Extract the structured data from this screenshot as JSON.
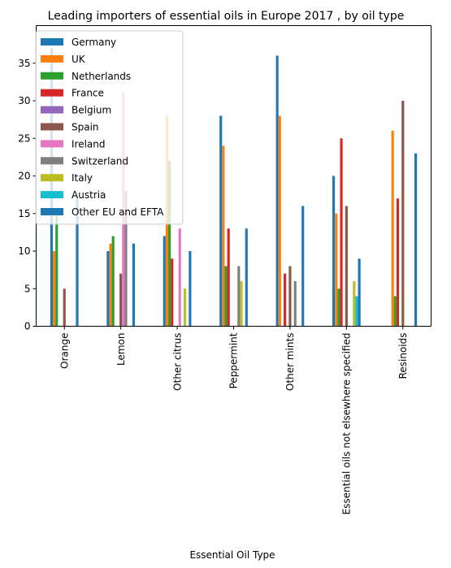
{
  "chart_data": {
    "type": "bar",
    "title": "Leading importers of essential oils in Europe 2017 , by oil type",
    "xlabel": "Essential Oil Type",
    "ylabel": "",
    "ylim": [
      0,
      40
    ],
    "yticks": [
      0,
      5,
      10,
      15,
      20,
      25,
      30,
      35
    ],
    "grid": false,
    "legend_position": "top-left",
    "categories": [
      "Orange",
      "Lemon",
      "Other citrus",
      "Peppermint",
      "Other mints",
      "Essential oils not elsewhere specified",
      "Resinoids"
    ],
    "series": [
      {
        "name": "Germany",
        "color": "#1f77b4",
        "values": [
          37,
          10,
          12,
          28,
          36,
          20,
          0
        ]
      },
      {
        "name": "UK",
        "color": "#ff7f0e",
        "values": [
          10,
          11,
          28,
          24,
          28,
          15,
          26
        ]
      },
      {
        "name": "Netherlands",
        "color": "#2ca02c",
        "values": [
          15,
          12,
          22,
          8,
          0,
          5,
          4
        ]
      },
      {
        "name": "France",
        "color": "#d62728",
        "values": [
          0,
          0,
          9,
          13,
          7,
          25,
          17
        ]
      },
      {
        "name": "Belgium",
        "color": "#9467bd",
        "values": [
          0,
          0,
          0,
          0,
          0,
          0,
          0
        ]
      },
      {
        "name": "Spain",
        "color": "#8c564b",
        "values": [
          5,
          7,
          0,
          0,
          8,
          16,
          30
        ]
      },
      {
        "name": "Ireland",
        "color": "#e377c2",
        "values": [
          0,
          31,
          13,
          0,
          0,
          0,
          0
        ]
      },
      {
        "name": "Switzerland",
        "color": "#7f7f7f",
        "values": [
          0,
          18,
          0,
          8,
          6,
          0,
          0
        ]
      },
      {
        "name": "Italy",
        "color": "#bcbd22",
        "values": [
          0,
          0,
          5,
          6,
          0,
          6,
          0
        ]
      },
      {
        "name": "Austria",
        "color": "#17becf",
        "values": [
          0,
          0,
          0,
          0,
          0,
          4,
          0
        ]
      },
      {
        "name": "Other EU and EFTA",
        "color": "#1f77b4",
        "values": [
          17,
          11,
          10,
          13,
          16,
          9,
          23
        ]
      }
    ]
  }
}
